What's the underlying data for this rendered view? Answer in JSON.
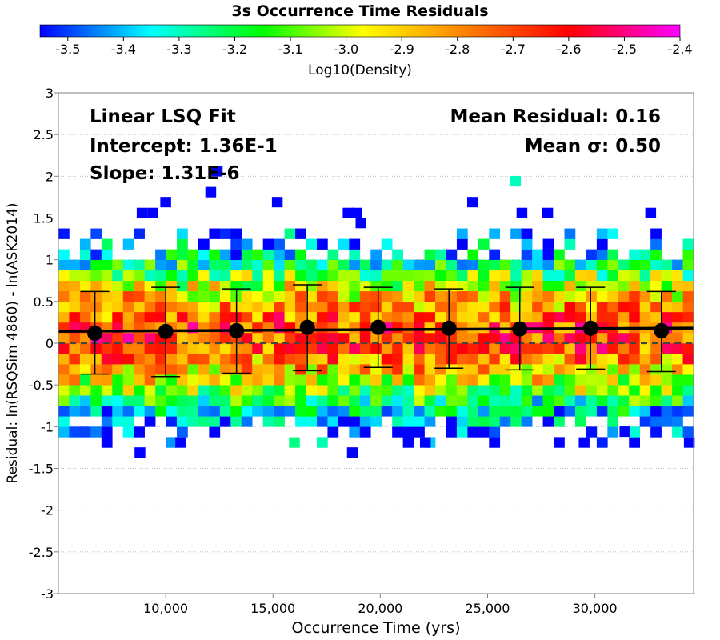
{
  "chart_data": {
    "type": "heatmap",
    "title": "3s Occurrence Time Residuals",
    "colorbar": {
      "label": "Log10(Density)",
      "range": [
        -3.55,
        -2.4
      ],
      "ticks": [
        "-3.5",
        "-3.4",
        "-3.3",
        "-3.2",
        "-3.1",
        "-3.0",
        "-2.9",
        "-2.8",
        "-2.7",
        "-2.6",
        "-2.5",
        "-2.4"
      ],
      "stops": [
        {
          "v": -3.55,
          "color": "#0000ff"
        },
        {
          "v": -3.35,
          "color": "#00ffff"
        },
        {
          "v": -3.15,
          "color": "#00ff00"
        },
        {
          "v": -2.97,
          "color": "#ffff00"
        },
        {
          "v": -2.8,
          "color": "#ff8c00"
        },
        {
          "v": -2.6,
          "color": "#ff0000"
        },
        {
          "v": -2.4,
          "color": "#ff00ff"
        }
      ]
    },
    "xlabel": "Occurrence Time (yrs)",
    "ylabel": "Residual: ln(RSQSim 4860) - ln(ASK2014)",
    "xlim": [
      5000,
      34600
    ],
    "ylim": [
      -3,
      3
    ],
    "x_ticks": [
      10000,
      15000,
      20000,
      25000,
      30000
    ],
    "x_tick_labels": [
      "10,000",
      "15,000",
      "20,000",
      "25,000",
      "30,000"
    ],
    "y_ticks": [
      -3,
      -2.5,
      -2,
      -1.5,
      -1,
      -0.5,
      0,
      0.5,
      1,
      1.5,
      2,
      2.5,
      3
    ],
    "y_tick_labels": [
      "-3",
      "-2.5",
      "-2",
      "-1.5",
      "-1",
      "-0.5",
      "0",
      "0.5",
      "1",
      "1.5",
      "2",
      "2.5",
      "3"
    ],
    "grid": true,
    "annotations": {
      "fit_title": "Linear LSQ Fit",
      "intercept": "Intercept: 1.36E-1",
      "slope": "Slope: 1.31E-6",
      "mean_residual": "Mean Residual: 0.16",
      "mean_sigma": "Mean σ: 0.50"
    },
    "fit_line": {
      "intercept": 0.136,
      "slope": 1.31e-06
    },
    "binned_means": {
      "x": [
        6700,
        10000,
        13300,
        16600,
        19900,
        23200,
        26500,
        29800,
        33100
      ],
      "mean": [
        0.12,
        0.14,
        0.15,
        0.19,
        0.19,
        0.18,
        0.17,
        0.18,
        0.15
      ],
      "lower": [
        -0.37,
        -0.4,
        -0.36,
        -0.33,
        -0.29,
        -0.3,
        -0.32,
        -0.31,
        -0.34
      ],
      "upper": [
        0.62,
        0.67,
        0.65,
        0.7,
        0.67,
        0.65,
        0.67,
        0.67,
        0.62
      ]
    },
    "heatmap": {
      "x_bins": 59,
      "y_bins_per_unit": 8,
      "density_profile": [
        {
          "y": -1.25,
          "level": -3.5
        },
        {
          "y": -1.0,
          "level": -3.45
        },
        {
          "y": -0.75,
          "level": -3.3
        },
        {
          "y": -0.5,
          "level": -3.02
        },
        {
          "y": -0.25,
          "level": -2.82
        },
        {
          "y": 0.0,
          "level": -2.68
        },
        {
          "y": 0.25,
          "level": -2.7
        },
        {
          "y": 0.5,
          "level": -2.85
        },
        {
          "y": 0.75,
          "level": -3.05
        },
        {
          "y": 1.0,
          "level": -3.3
        },
        {
          "y": 1.25,
          "level": -3.45
        },
        {
          "y": 1.5,
          "level": -3.55
        }
      ],
      "outliers": [
        {
          "x": 12100,
          "y": 1.81,
          "level": -3.55
        },
        {
          "x": 12400,
          "y": 2.06,
          "level": -3.55
        },
        {
          "x": 26300,
          "y": 1.94,
          "level": -3.3
        },
        {
          "x": 8900,
          "y": 1.56,
          "level": -3.55
        },
        {
          "x": 9400,
          "y": 1.56,
          "level": -3.55
        },
        {
          "x": 10000,
          "y": 1.69,
          "level": -3.55
        },
        {
          "x": 15200,
          "y": 1.69,
          "level": -3.55
        },
        {
          "x": 18500,
          "y": 1.56,
          "level": -3.55
        },
        {
          "x": 18900,
          "y": 1.56,
          "level": -3.55
        },
        {
          "x": 19100,
          "y": 1.44,
          "level": -3.55
        },
        {
          "x": 24300,
          "y": 1.69,
          "level": -3.55
        },
        {
          "x": 26600,
          "y": 1.56,
          "level": -3.55
        },
        {
          "x": 27800,
          "y": 1.56,
          "level": -3.55
        },
        {
          "x": 32600,
          "y": 1.56,
          "level": -3.55
        },
        {
          "x": 8800,
          "y": -1.31,
          "level": -3.55
        },
        {
          "x": 18700,
          "y": -1.31,
          "level": -3.55
        },
        {
          "x": 10700,
          "y": -1.19,
          "level": -3.55
        },
        {
          "x": 16000,
          "y": -1.19,
          "level": -3.25
        },
        {
          "x": 34400,
          "y": -1.19,
          "level": -3.55
        },
        {
          "x": 22100,
          "y": -1.19,
          "level": -3.55
        },
        {
          "x": 29500,
          "y": -1.19,
          "level": -3.55
        },
        {
          "x": 31400,
          "y": -1.06,
          "level": -3.55
        }
      ]
    }
  }
}
